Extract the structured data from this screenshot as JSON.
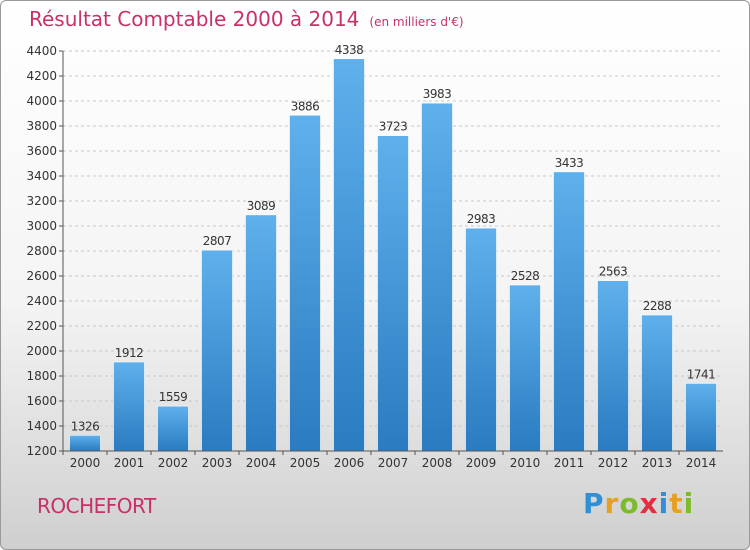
{
  "title": "Résultat Comptable 2000 à 2014",
  "subtitle": "(en milliers d'€)",
  "city": "ROCHEFORT",
  "logo": {
    "letters": [
      "P",
      "r",
      "o",
      "x",
      "i",
      "t",
      "i"
    ],
    "colors": [
      "#2f8fd8",
      "#e8a020",
      "#7dbb2a",
      "#e03040",
      "#2f8fd8",
      "#e8a020",
      "#7dbb2a"
    ]
  },
  "colors": {
    "title": "#c8306a",
    "bar_top": "#5fb0ec",
    "bar_bottom": "#2a7bc0",
    "grid": "#c8c8c8",
    "axis": "#555555"
  },
  "chart_data": {
    "type": "bar",
    "title": "Résultat Comptable 2000 à 2014",
    "xlabel": "",
    "ylabel": "",
    "ylim": [
      1200,
      4400
    ],
    "yticks": [
      1200,
      1400,
      1600,
      1800,
      2000,
      2200,
      2400,
      2600,
      2800,
      3000,
      3200,
      3400,
      3600,
      3800,
      4000,
      4200,
      4400
    ],
    "categories": [
      "2000",
      "2001",
      "2002",
      "2003",
      "2004",
      "2005",
      "2006",
      "2007",
      "2008",
      "2009",
      "2010",
      "2011",
      "2012",
      "2013",
      "2014"
    ],
    "values": [
      1326,
      1912,
      1559,
      2807,
      3089,
      3886,
      4338,
      3723,
      3983,
      2983,
      2528,
      3433,
      2563,
      2288,
      1741
    ],
    "grid": true
  }
}
